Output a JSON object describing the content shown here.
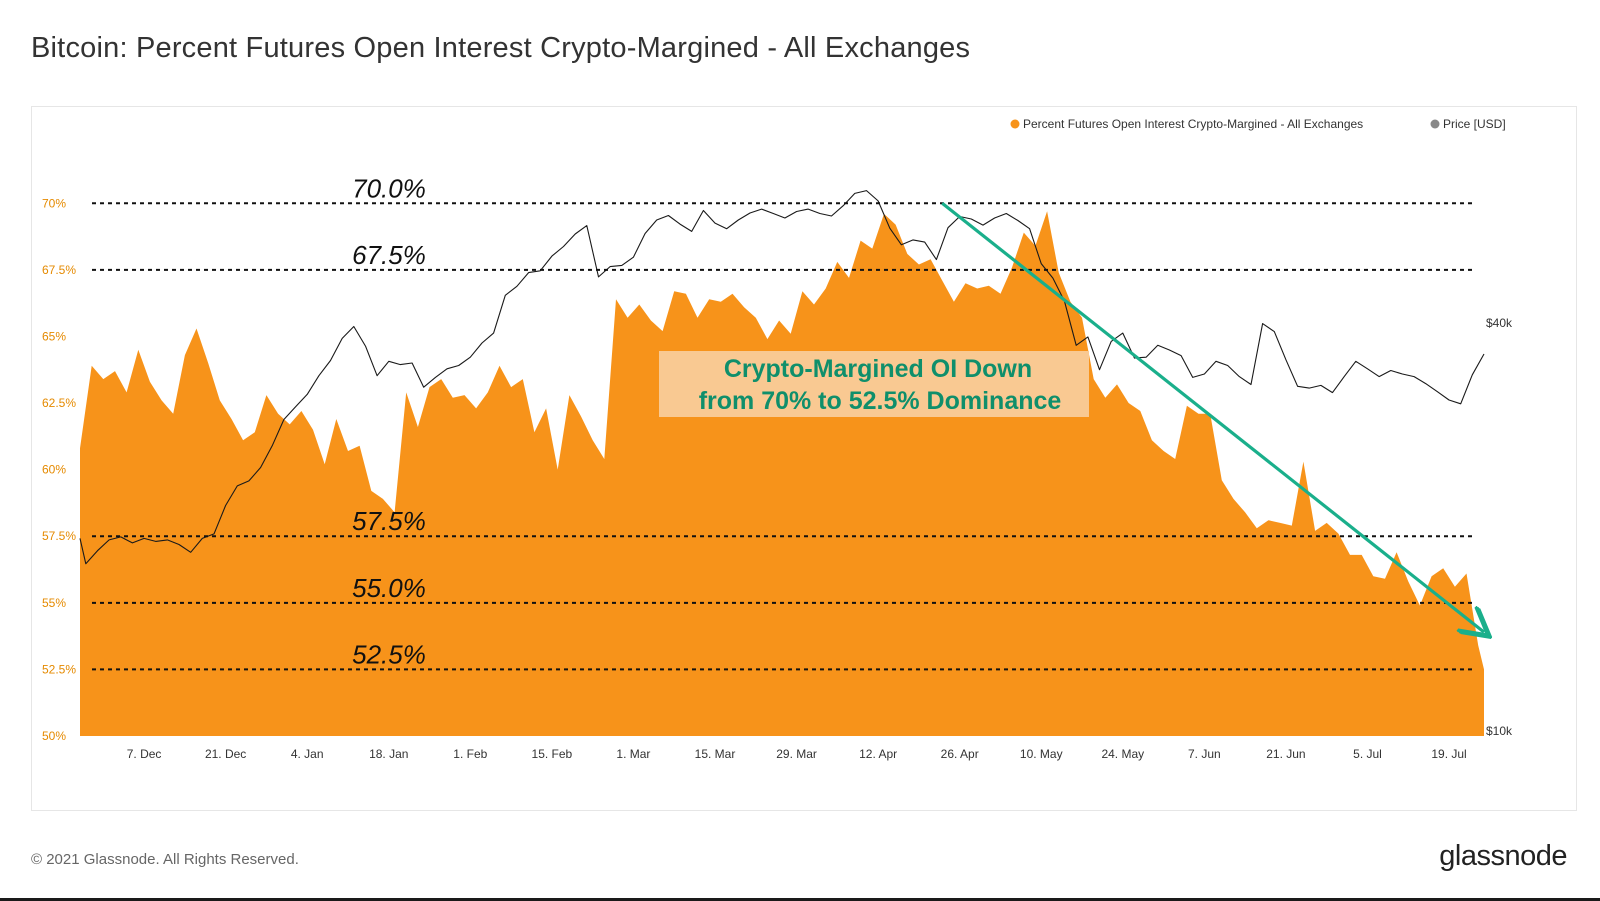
{
  "header": {
    "title": "Bitcoin: Percent Futures Open Interest Crypto-Margined - All Exchanges"
  },
  "footer": {
    "copyright": "© 2021 Glassnode. All Rights Reserved.",
    "logo": "glassnode"
  },
  "colors": {
    "series": "#f7931a",
    "price": "#1a1a1a",
    "arrow": "#1aaf8b",
    "annotation_bg": "#f9c992",
    "annotation_text": "#0f8f6b",
    "axis_text": "#e58a00",
    "legend_price_dot": "#888888"
  },
  "chart_data": {
    "type": "area",
    "title": "Bitcoin: Percent Futures Open Interest Crypto-Margined - All Exchanges",
    "legend": [
      {
        "name": "Percent Futures Open Interest Crypto-Margined - All Exchanges",
        "color": "#f7931a"
      },
      {
        "name": "Price [USD]",
        "color": "#888888"
      }
    ],
    "x_tick_labels": [
      "7. Dec",
      "21. Dec",
      "4. Jan",
      "18. Jan",
      "1. Feb",
      "15. Feb",
      "1. Mar",
      "15. Mar",
      "29. Mar",
      "12. Apr",
      "26. Apr",
      "10. May",
      "24. May",
      "7. Jun",
      "21. Jun",
      "5. Jul",
      "19. Jul"
    ],
    "x_range_days": [
      -4,
      237
    ],
    "x_tick_days": [
      7,
      21,
      35,
      49,
      63,
      77,
      91,
      105,
      119,
      133,
      147,
      161,
      175,
      189,
      203,
      217,
      231
    ],
    "y_left": {
      "ticks": [
        "70%",
        "67.5%",
        "65%",
        "62.5%",
        "60%",
        "57.5%",
        "55%",
        "52.5%",
        "50%"
      ],
      "tick_values": [
        70,
        67.5,
        65,
        62.5,
        60,
        57.5,
        55,
        52.5,
        50
      ],
      "range": [
        50,
        72
      ]
    },
    "y_right": {
      "ticks": [
        "$40k",
        "$10k"
      ],
      "scale": "log"
    },
    "reference_lines": [
      {
        "value": 70.0,
        "label": "70.0%"
      },
      {
        "value": 67.5,
        "label": "67.5%"
      },
      {
        "value": 57.5,
        "label": "57.5%"
      },
      {
        "value": 55.0,
        "label": "55.0%"
      },
      {
        "value": 52.5,
        "label": "52.5%"
      }
    ],
    "series": [
      {
        "name": "Percent Futures Open Interest Crypto-Margined - All Exchanges",
        "unit": "%",
        "x_days": [
          -4,
          -2,
          0,
          2,
          4,
          6,
          8,
          10,
          12,
          14,
          16,
          18,
          20,
          22,
          24,
          26,
          28,
          30,
          32,
          34,
          36,
          38,
          40,
          42,
          44,
          46,
          48,
          50,
          52,
          54,
          56,
          58,
          60,
          62,
          64,
          66,
          68,
          70,
          72,
          74,
          76,
          78,
          80,
          82,
          84,
          86,
          88,
          90,
          92,
          94,
          96,
          98,
          100,
          102,
          104,
          106,
          108,
          110,
          112,
          114,
          116,
          118,
          120,
          122,
          124,
          126,
          128,
          130,
          132,
          134,
          136,
          138,
          140,
          142,
          144,
          146,
          148,
          150,
          152,
          154,
          156,
          158,
          160,
          162,
          164,
          166,
          168,
          170,
          172,
          174,
          176,
          178,
          180,
          182,
          184,
          186,
          188,
          190,
          192,
          194,
          196,
          198,
          200,
          202,
          204,
          206,
          208,
          210,
          212,
          214,
          216,
          218,
          220,
          222,
          224,
          226,
          228,
          230,
          232,
          234,
          236,
          237
        ],
        "values": [
          60.8,
          63.9,
          63.4,
          63.7,
          62.9,
          64.5,
          63.3,
          62.6,
          62.1,
          64.3,
          65.3,
          64.0,
          62.6,
          61.9,
          61.1,
          61.4,
          62.8,
          62.1,
          61.7,
          62.2,
          61.5,
          60.2,
          61.9,
          60.7,
          60.9,
          59.2,
          58.9,
          58.4,
          62.9,
          61.6,
          63.1,
          63.4,
          62.7,
          62.8,
          62.3,
          62.9,
          63.9,
          63.1,
          63.4,
          61.4,
          62.3,
          60.0,
          62.8,
          62.0,
          61.1,
          60.4,
          66.4,
          65.7,
          66.2,
          65.6,
          65.2,
          66.7,
          66.6,
          65.7,
          66.4,
          66.3,
          66.6,
          66.1,
          65.7,
          64.9,
          65.6,
          65.1,
          66.7,
          66.2,
          66.8,
          67.8,
          67.2,
          68.6,
          68.3,
          69.6,
          69.2,
          68.1,
          67.7,
          67.9,
          67.1,
          66.3,
          67.0,
          66.8,
          66.9,
          66.6,
          67.6,
          68.9,
          68.4,
          69.7,
          67.4,
          66.3,
          65.7,
          63.4,
          62.7,
          63.2,
          62.5,
          62.2,
          61.1,
          60.7,
          60.4,
          62.4,
          62.1,
          62.1,
          59.6,
          58.9,
          58.4,
          57.8,
          58.1,
          58.0,
          57.9,
          60.3,
          57.7,
          58.0,
          57.6,
          56.8,
          56.8,
          56.0,
          55.9,
          56.9,
          55.8,
          54.9,
          56.0,
          56.3,
          55.6,
          56.1,
          53.4,
          52.5
        ]
      },
      {
        "name": "Price [USD]",
        "unit": "USD",
        "x_days": [
          -4,
          -3,
          -1,
          1,
          3,
          5,
          7,
          9,
          11,
          13,
          15,
          17,
          19,
          21,
          23,
          25,
          27,
          29,
          31,
          33,
          35,
          37,
          39,
          41,
          43,
          45,
          47,
          49,
          51,
          53,
          55,
          57,
          59,
          61,
          63,
          65,
          67,
          69,
          71,
          73,
          75,
          77,
          79,
          81,
          83,
          85,
          87,
          89,
          91,
          93,
          95,
          97,
          99,
          101,
          103,
          105,
          107,
          109,
          111,
          113,
          115,
          117,
          119,
          121,
          123,
          125,
          127,
          129,
          131,
          133,
          135,
          137,
          139,
          141,
          143,
          145,
          147,
          149,
          151,
          153,
          155,
          157,
          159,
          161,
          163,
          165,
          167,
          169,
          171,
          173,
          175,
          177,
          179,
          181,
          183,
          185,
          187,
          189,
          191,
          193,
          195,
          197,
          199,
          201,
          203,
          205,
          207,
          209,
          211,
          213,
          215,
          217,
          219,
          221,
          223,
          225,
          227,
          229,
          231,
          233,
          235,
          237
        ],
        "values": [
          19200,
          17600,
          18400,
          19100,
          19300,
          18900,
          19200,
          19000,
          19100,
          18800,
          18300,
          19200,
          19500,
          21500,
          23000,
          23400,
          24500,
          26400,
          28900,
          30200,
          31500,
          33600,
          35400,
          38200,
          39800,
          37200,
          33600,
          35300,
          34900,
          35100,
          32300,
          33400,
          34400,
          34800,
          35800,
          37600,
          38900,
          44300,
          45700,
          47900,
          48200,
          50700,
          52400,
          54700,
          56300,
          47200,
          48900,
          49100,
          50500,
          54800,
          57400,
          58300,
          56600,
          55200,
          59300,
          56800,
          55700,
          57400,
          58800,
          59600,
          58700,
          57800,
          59100,
          59600,
          58700,
          58200,
          60300,
          62900,
          63500,
          61300,
          55800,
          52700,
          53600,
          53200,
          50100,
          55900,
          58100,
          57600,
          56400,
          57800,
          58700,
          57300,
          55700,
          49400,
          47000,
          43400,
          37300,
          38400,
          34300,
          37800,
          38900,
          35700,
          35800,
          37300,
          36700,
          36000,
          33400,
          33800,
          35300,
          34800,
          33500,
          32600,
          40200,
          39100,
          35500,
          32400,
          32200,
          32500,
          31700,
          33500,
          35300,
          34400,
          33500,
          34200,
          33800,
          33500,
          32700,
          31800,
          30900,
          30500,
          33700,
          36200
        ]
      }
    ],
    "annotation": {
      "text_line1": "Crypto-Margined OI Down",
      "text_line2": "from 70% to 52.5% Dominance"
    },
    "trend_arrow": {
      "start": {
        "x_day": 144,
        "y": 70.0
      },
      "end": {
        "x_day": 237,
        "y": 53.9
      }
    }
  }
}
